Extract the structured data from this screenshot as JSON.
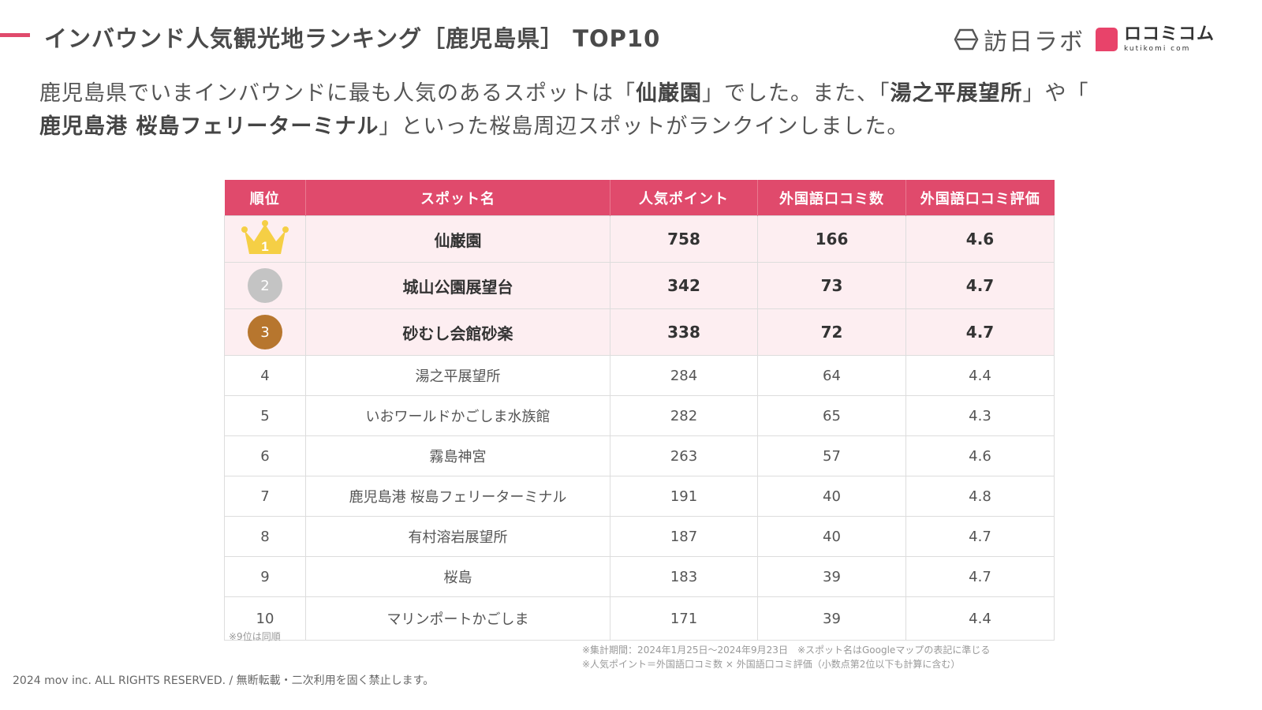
{
  "header": {
    "title": "インバウンド人気観光地ランキング［鹿児島県］ TOP10",
    "logo_hounichi": "訪日ラボ",
    "logo_kuchikomi": "ロコミコム",
    "logo_kuchikomi_sub": "kutikomi com"
  },
  "lead": {
    "p1": "鹿児島県でいまインバウンドに最も人気のあるスポットは「",
    "b1": "仙巌園",
    "p2": "」でした。また、「",
    "b2": "湯之平展望所",
    "p3": "」や「",
    "b3": "鹿児島港 桜島フェリーターミナル",
    "p4": "」といった桜島周辺スポットがランクインしました。"
  },
  "table": {
    "headers": [
      "順位",
      "スポット名",
      "人気ポイント",
      "外国語口コミ数",
      "外国語口コミ評価"
    ],
    "rows": [
      {
        "rank": "1",
        "name": "仙巌園",
        "points": "758",
        "reviews": "166",
        "rating": "4.6"
      },
      {
        "rank": "2",
        "name": "城山公園展望台",
        "points": "342",
        "reviews": "73",
        "rating": "4.7"
      },
      {
        "rank": "3",
        "name": "砂むし会館砂楽",
        "points": "338",
        "reviews": "72",
        "rating": "4.7"
      },
      {
        "rank": "4",
        "name": "湯之平展望所",
        "points": "284",
        "reviews": "64",
        "rating": "4.4"
      },
      {
        "rank": "5",
        "name": "いおワールドかごしま水族館",
        "points": "282",
        "reviews": "65",
        "rating": "4.3"
      },
      {
        "rank": "6",
        "name": "霧島神宮",
        "points": "263",
        "reviews": "57",
        "rating": "4.6"
      },
      {
        "rank": "7",
        "name": "鹿児島港 桜島フェリーターミナル",
        "points": "191",
        "reviews": "40",
        "rating": "4.8"
      },
      {
        "rank": "8",
        "name": "有村溶岩展望所",
        "points": "187",
        "reviews": "40",
        "rating": "4.7"
      },
      {
        "rank": "9",
        "name": "桜島",
        "points": "183",
        "reviews": "39",
        "rating": "4.7"
      },
      {
        "rank": "10",
        "name": "マリンポートかごしま",
        "points": "171",
        "reviews": "39",
        "rating": "4.4"
      }
    ]
  },
  "notes": {
    "tie": "※9位は同順",
    "period": "※集計期間：2024年1月25日〜2024年9月23日　※スポット名はGoogleマップの表記に準じる",
    "formula": "※人気ポイント＝外国語口コミ数 × 外国語口コミ評価（小数点第2位以下も計算に含む）"
  },
  "footer": "2024 mov inc. ALL RIGHTS RESERVED. / 無断転載・二次利用を固く禁止します。",
  "colors": {
    "accent": "#e04a6c",
    "header_bg": "#e04a6c",
    "top_row_bg": "#fdeef1",
    "gold": "#f5cf45",
    "silver": "#c4c4c4",
    "bronze": "#b7762e",
    "logo_pink": "#e8436a"
  }
}
